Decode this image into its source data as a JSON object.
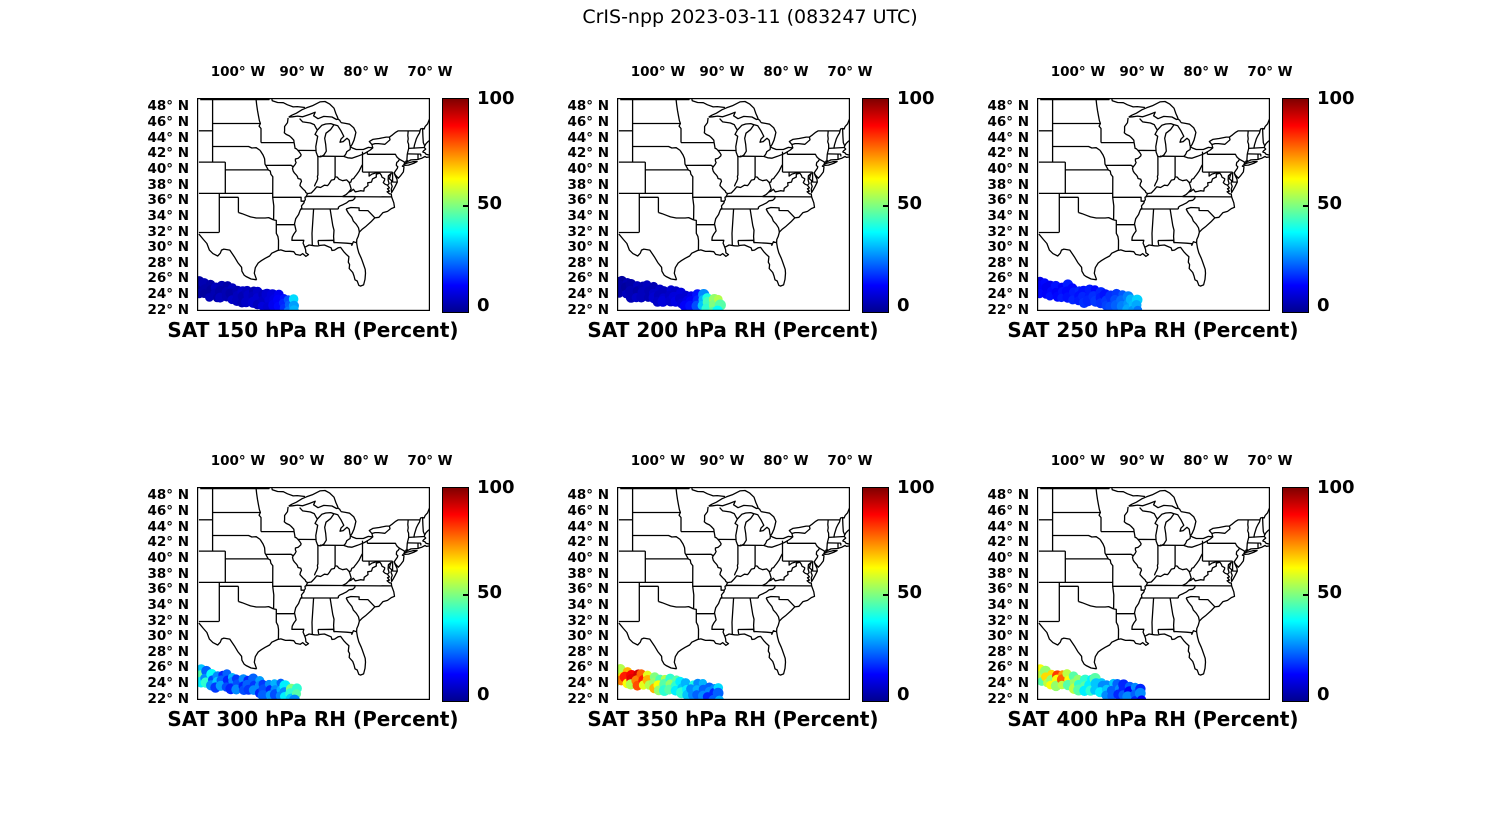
{
  "figure": {
    "title": "CrIS-npp 2023-03-11 (083247 UTC)",
    "satellite": "CrIS-npp",
    "date": "2023-03-11",
    "time_utc": "083247"
  },
  "axes": {
    "x_tick_labels": [
      "100° W",
      "90° W",
      "80° W",
      "70° W"
    ],
    "x_tick_lons": [
      -100,
      -90,
      -80,
      -70
    ],
    "y_tick_labels": [
      "48° N",
      "46° N",
      "44° N",
      "42° N",
      "40° N",
      "38° N",
      "36° N",
      "34° N",
      "32° N",
      "30° N",
      "28° N",
      "26° N",
      "24° N",
      "22° N"
    ],
    "y_tick_lats": [
      48,
      46,
      44,
      42,
      40,
      38,
      36,
      34,
      32,
      30,
      28,
      26,
      24,
      22
    ],
    "lon_range": [
      -106.5,
      -69.9
    ],
    "lat_range": [
      22.0,
      49.2
    ],
    "region": "Central and Eastern United States with state boundaries and Great Lakes"
  },
  "colorbar": {
    "tick_labels": [
      "100",
      "50",
      "0"
    ],
    "range": [
      0,
      100
    ],
    "colormap": "jet",
    "gradient_stops": [
      "#00008f",
      "#0000ff",
      "#00ffff",
      "#ffff00",
      "#ff0000",
      "#800000"
    ]
  },
  "chart_data": [
    {
      "type": "scatter",
      "title": "SAT 150 hPa RH (Percent)",
      "pressure_hPa": 150,
      "variable": "RH",
      "units": "Percent",
      "value_range": [
        0,
        100
      ],
      "swath": {
        "lon_start": -106.8,
        "lon_end": -91.3,
        "lat_start": 25.0,
        "lat_end": 22.8,
        "rows": 3,
        "columns": 20,
        "row_spacing_deg": 0.72,
        "values_percent_by_row": [
          [
            4,
            3,
            5,
            4,
            6,
            5,
            4,
            6,
            5,
            7,
            6,
            5,
            7,
            6,
            8,
            9,
            11,
            14,
            20,
            34
          ],
          [
            3,
            2,
            4,
            3,
            5,
            4,
            5,
            4,
            6,
            5,
            7,
            6,
            8,
            7,
            9,
            10,
            12,
            16,
            22,
            28
          ],
          [
            5,
            4,
            3,
            5,
            4,
            6,
            5,
            7,
            6,
            5,
            7,
            8,
            6,
            9,
            8,
            11,
            13,
            17,
            24,
            30
          ]
        ]
      }
    },
    {
      "type": "scatter",
      "title": "SAT 200 hPa RH (Percent)",
      "pressure_hPa": 200,
      "variable": "RH",
      "units": "Percent",
      "value_range": [
        0,
        100
      ],
      "swath": {
        "lon_start": -106.8,
        "lon_end": -90.5,
        "lat_start": 25.0,
        "lat_end": 22.8,
        "rows": 3,
        "columns": 20,
        "row_spacing_deg": 0.72,
        "values_percent_by_row": [
          [
            4,
            3,
            5,
            4,
            6,
            5,
            6,
            5,
            7,
            6,
            8,
            7,
            9,
            8,
            10,
            14,
            26,
            40,
            52,
            55
          ],
          [
            3,
            4,
            3,
            5,
            4,
            6,
            5,
            7,
            6,
            8,
            7,
            9,
            8,
            10,
            12,
            16,
            30,
            44,
            50,
            46
          ],
          [
            5,
            4,
            6,
            5,
            7,
            6,
            5,
            8,
            7,
            9,
            8,
            10,
            9,
            12,
            14,
            20,
            32,
            42,
            46,
            38
          ]
        ]
      }
    },
    {
      "type": "scatter",
      "title": "SAT 250 hPa RH (Percent)",
      "pressure_hPa": 250,
      "variable": "RH",
      "units": "Percent",
      "value_range": [
        0,
        100
      ],
      "swath": {
        "lon_start": -106.8,
        "lon_end": -90.7,
        "lat_start": 25.0,
        "lat_end": 22.8,
        "rows": 3,
        "columns": 20,
        "row_spacing_deg": 0.72,
        "values_percent_by_row": [
          [
            12,
            10,
            13,
            11,
            14,
            12,
            15,
            13,
            16,
            14,
            15,
            13,
            16,
            14,
            17,
            18,
            21,
            25,
            30,
            33
          ],
          [
            10,
            12,
            11,
            13,
            12,
            14,
            13,
            15,
            14,
            16,
            15,
            17,
            15,
            18,
            17,
            20,
            23,
            27,
            31,
            29
          ],
          [
            11,
            13,
            12,
            14,
            13,
            15,
            14,
            16,
            15,
            17,
            16,
            18,
            17,
            19,
            20,
            22,
            25,
            29,
            27,
            24
          ]
        ]
      }
    },
    {
      "type": "scatter",
      "title": "SAT 300 hPa RH (Percent)",
      "pressure_hPa": 300,
      "variable": "RH",
      "units": "Percent",
      "value_range": [
        0,
        100
      ],
      "swath": {
        "lon_start": -106.8,
        "lon_end": -91.0,
        "lat_start": 25.0,
        "lat_end": 22.8,
        "rows": 3,
        "columns": 20,
        "row_spacing_deg": 0.72,
        "values_percent_by_row": [
          [
            46,
            32,
            22,
            38,
            26,
            16,
            22,
            30,
            18,
            26,
            16,
            22,
            28,
            18,
            26,
            30,
            22,
            36,
            50,
            42
          ],
          [
            36,
            46,
            26,
            20,
            32,
            22,
            16,
            26,
            20,
            16,
            22,
            18,
            26,
            20,
            16,
            26,
            30,
            26,
            42,
            46
          ],
          [
            26,
            36,
            42,
            26,
            18,
            28,
            20,
            16,
            26,
            20,
            18,
            26,
            16,
            22,
            28,
            20,
            26,
            36,
            32,
            26
          ]
        ]
      }
    },
    {
      "type": "scatter",
      "title": "SAT 350 hPa RH (Percent)",
      "pressure_hPa": 350,
      "variable": "RH",
      "units": "Percent",
      "value_range": [
        0,
        100
      ],
      "swath": {
        "lon_start": -106.8,
        "lon_end": -90.4,
        "lat_start": 25.0,
        "lat_end": 22.8,
        "rows": 3,
        "columns": 20,
        "row_spacing_deg": 0.72,
        "values_percent_by_row": [
          [
            48,
            55,
            70,
            88,
            92,
            78,
            60,
            50,
            45,
            55,
            42,
            46,
            36,
            30,
            40,
            26,
            30,
            22,
            26,
            34
          ],
          [
            55,
            65,
            85,
            90,
            75,
            85,
            70,
            52,
            62,
            46,
            52,
            42,
            32,
            36,
            26,
            30,
            22,
            26,
            16,
            22
          ],
          [
            50,
            75,
            62,
            55,
            80,
            60,
            55,
            70,
            52,
            42,
            46,
            36,
            42,
            32,
            26,
            22,
            26,
            16,
            22,
            30
          ]
        ]
      }
    },
    {
      "type": "scatter",
      "title": "SAT 400 hPa RH (Percent)",
      "pressure_hPa": 400,
      "variable": "RH",
      "units": "Percent",
      "value_range": [
        0,
        100
      ],
      "swath": {
        "lon_start": -106.8,
        "lon_end": -90.3,
        "lat_start": 25.0,
        "lat_end": 22.8,
        "rows": 3,
        "columns": 20,
        "row_spacing_deg": 0.72,
        "values_percent_by_row": [
          [
            56,
            62,
            52,
            66,
            82,
            72,
            56,
            46,
            52,
            42,
            36,
            46,
            32,
            26,
            32,
            22,
            16,
            22,
            26,
            16
          ],
          [
            46,
            56,
            66,
            52,
            62,
            78,
            62,
            52,
            42,
            46,
            36,
            32,
            26,
            32,
            22,
            26,
            16,
            12,
            22,
            26
          ],
          [
            52,
            46,
            56,
            62,
            52,
            56,
            46,
            56,
            46,
            36,
            42,
            32,
            36,
            26,
            22,
            16,
            22,
            26,
            16,
            12
          ]
        ]
      }
    }
  ]
}
